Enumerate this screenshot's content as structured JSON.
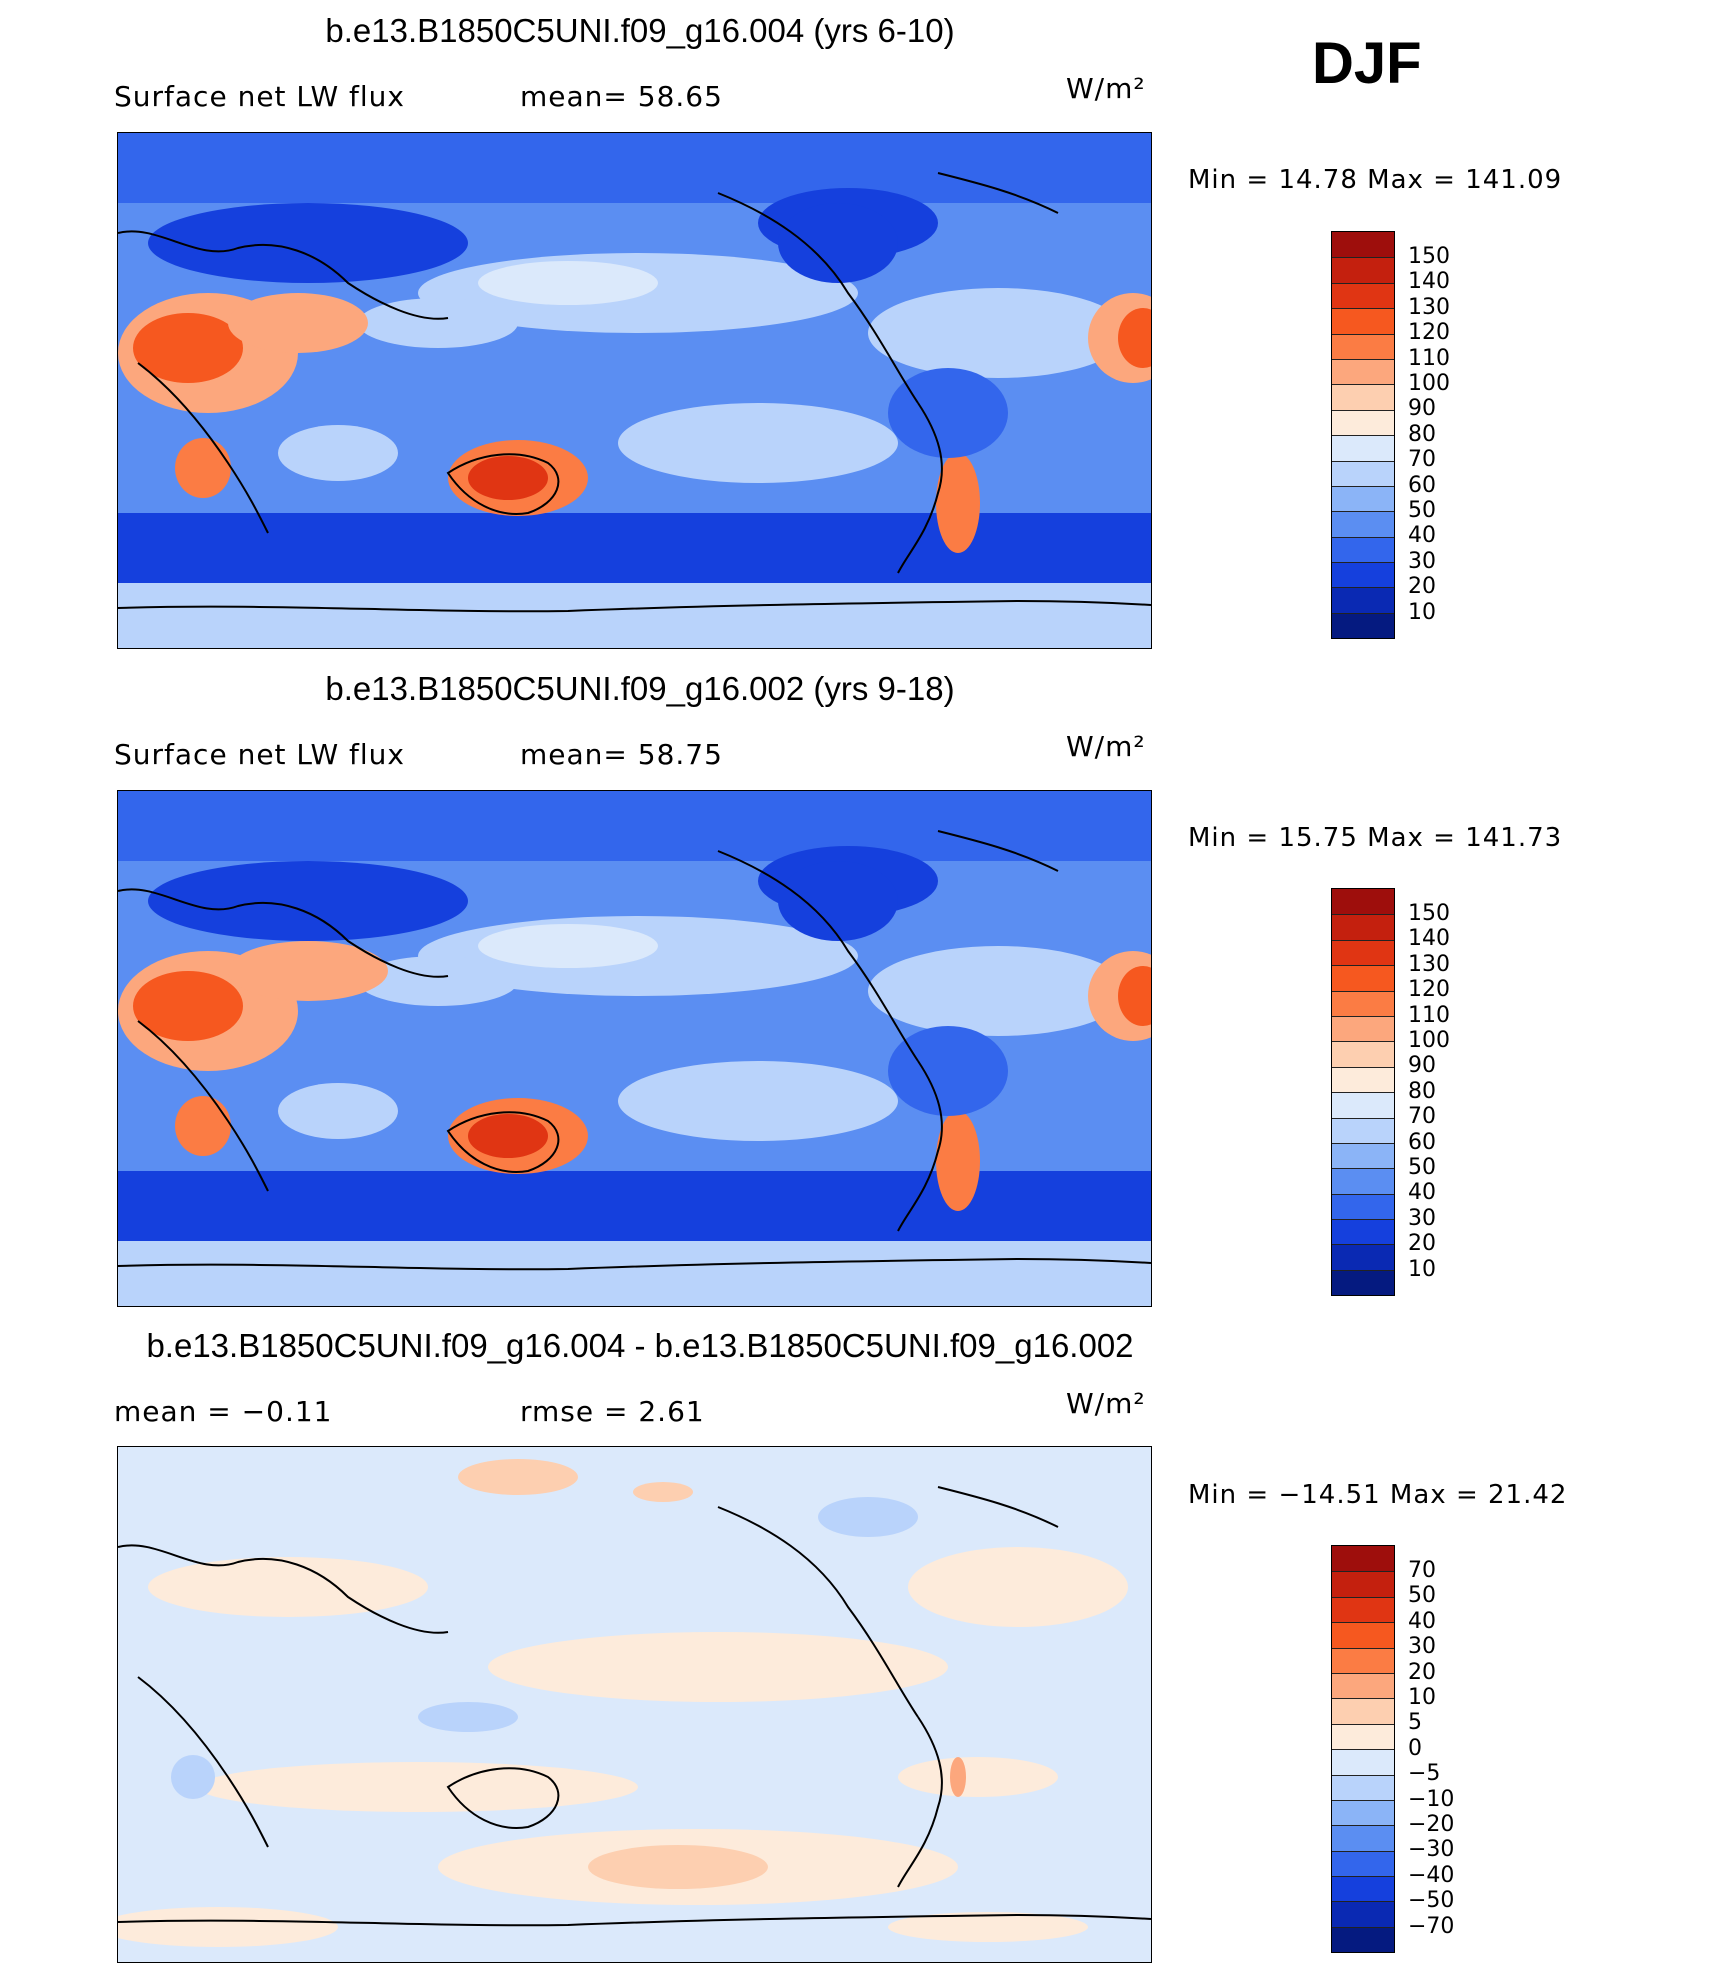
{
  "season": "DJF",
  "panels": [
    {
      "title": "b.e13.B1850C5UNI.f09_g16.004 (yrs 6-10)",
      "left_label": "Surface net LW flux",
      "mid_label": "mean=   58.65",
      "units": "W/m²",
      "minmax": "Min  =   14.78  Max  =  141.09",
      "colorbar": {
        "levels": [
          "150",
          "140",
          "130",
          "120",
          "110",
          "100",
          "90",
          "80",
          "70",
          "60",
          "50",
          "40",
          "30",
          "20",
          "10"
        ],
        "colors": [
          "#9e0e0c",
          "#c4200e",
          "#e03513",
          "#f6581f",
          "#fb7c44",
          "#fca77d",
          "#fdcfb0",
          "#fdebdb",
          "#dbe9fb",
          "#b9d3fb",
          "#8bb4f7",
          "#5b8ef2",
          "#3366ec",
          "#1540dd",
          "#0a29b3",
          "#051a80"
        ]
      }
    },
    {
      "title": "b.e13.B1850C5UNI.f09_g16.002 (yrs 9-18)",
      "left_label": "Surface net LW flux",
      "mid_label": "mean=   58.75",
      "units": "W/m²",
      "minmax": "Min  =   15.75  Max  =  141.73",
      "colorbar": {
        "levels": [
          "150",
          "140",
          "130",
          "120",
          "110",
          "100",
          "90",
          "80",
          "70",
          "60",
          "50",
          "40",
          "30",
          "20",
          "10"
        ],
        "colors": [
          "#9e0e0c",
          "#c4200e",
          "#e03513",
          "#f6581f",
          "#fb7c44",
          "#fca77d",
          "#fdcfb0",
          "#fdebdb",
          "#dbe9fb",
          "#b9d3fb",
          "#8bb4f7",
          "#5b8ef2",
          "#3366ec",
          "#1540dd",
          "#0a29b3",
          "#051a80"
        ]
      }
    },
    {
      "title": "b.e13.B1850C5UNI.f09_g16.004 - b.e13.B1850C5UNI.f09_g16.002",
      "left_label": "mean  =    −0.11",
      "mid_label": "rmse  =     2.61",
      "units": "W/m²",
      "minmax": "Min  =  −14.51  Max  =    21.42",
      "colorbar": {
        "levels": [
          "70",
          "50",
          "40",
          "30",
          "20",
          "10",
          "5",
          "0",
          "−5",
          "−10",
          "−20",
          "−30",
          "−40",
          "−50",
          "−70"
        ],
        "colors": [
          "#9e0e0c",
          "#c4200e",
          "#e03513",
          "#f6581f",
          "#fb7c44",
          "#fca77d",
          "#fdcfb0",
          "#fdebdb",
          "#dbe9fb",
          "#b9d3fb",
          "#8bb4f7",
          "#5b8ef2",
          "#3366ec",
          "#1540dd",
          "#0a29b3",
          "#051a80"
        ]
      }
    }
  ]
}
